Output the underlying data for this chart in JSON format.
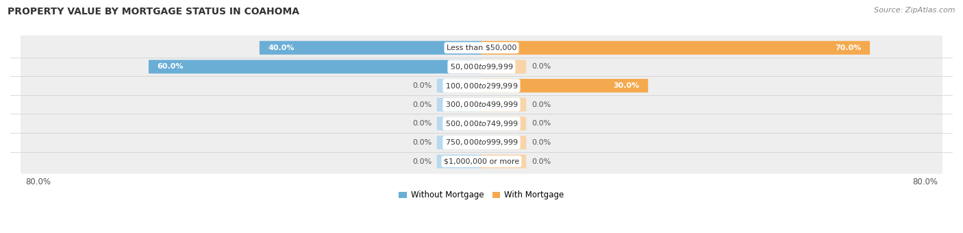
{
  "title": "PROPERTY VALUE BY MORTGAGE STATUS IN COAHOMA",
  "source": "Source: ZipAtlas.com",
  "categories": [
    "Less than $50,000",
    "$50,000 to $99,999",
    "$100,000 to $299,999",
    "$300,000 to $499,999",
    "$500,000 to $749,999",
    "$750,000 to $999,999",
    "$1,000,000 or more"
  ],
  "without_mortgage": [
    40.0,
    60.0,
    0.0,
    0.0,
    0.0,
    0.0,
    0.0
  ],
  "with_mortgage": [
    70.0,
    0.0,
    30.0,
    0.0,
    0.0,
    0.0,
    0.0
  ],
  "color_without": "#6aaed6",
  "color_without_light": "#b8d9ee",
  "color_with": "#f5a94e",
  "color_with_light": "#f8d4a8",
  "xlim": 80.0,
  "stub_size": 8.0,
  "bar_height": 0.62,
  "row_bg": "#eeeeee",
  "row_sep": "#d8d8d8",
  "title_fontsize": 10,
  "source_fontsize": 8,
  "label_fontsize": 8,
  "category_fontsize": 8,
  "axis_label_fontsize": 8.5,
  "legend_fontsize": 8.5
}
